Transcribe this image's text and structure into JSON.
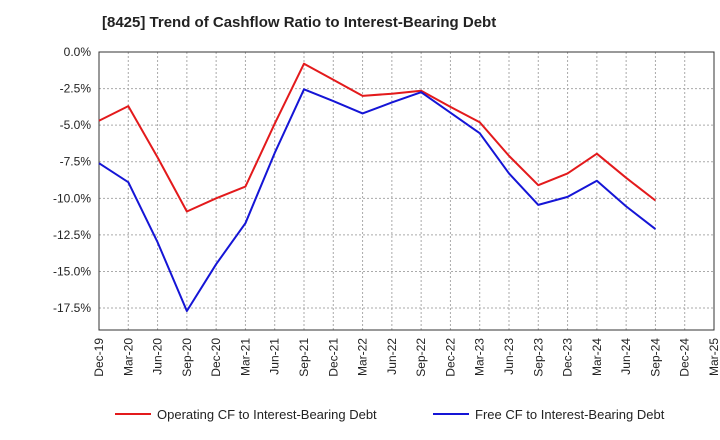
{
  "chart_data": {
    "type": "line",
    "title": "[8425]  Trend of Cashflow Ratio to Interest-Bearing Debt",
    "xlabel": "",
    "ylabel": "",
    "categories": [
      "Dec-19",
      "Mar-20",
      "Jun-20",
      "Sep-20",
      "Dec-20",
      "Mar-21",
      "Jun-21",
      "Sep-21",
      "Dec-21",
      "Mar-22",
      "Jun-22",
      "Sep-22",
      "Dec-22",
      "Mar-23",
      "Jun-23",
      "Sep-23",
      "Dec-23",
      "Mar-24",
      "Jun-24",
      "Sep-24",
      "Dec-24",
      "Mar-25"
    ],
    "y_ticks": [
      "0.0%",
      "-2.5%",
      "-5.0%",
      "-7.5%",
      "-10.0%",
      "-12.5%",
      "-15.0%",
      "-17.5%"
    ],
    "y_tick_values": [
      0,
      -2.5,
      -5,
      -7.5,
      -10,
      -12.5,
      -15,
      -17.5
    ],
    "ylim": [
      -19.0,
      0
    ],
    "grid": true,
    "legend_position": "bottom",
    "series": [
      {
        "name": "Operating CF to Interest-Bearing Debt",
        "color": "#e31a1c",
        "values": [
          -4.7,
          -3.7,
          -7.2,
          -10.9,
          -10.0,
          -9.2,
          -4.9,
          -0.8,
          -1.9,
          -3.0,
          -2.85,
          -2.65,
          -3.75,
          -4.8,
          -7.1,
          -9.1,
          -8.3,
          -6.95,
          -8.6,
          -10.15,
          null,
          null
        ]
      },
      {
        "name": "Free CF to Interest-Bearing Debt",
        "color": "#1515d6",
        "values": [
          -7.6,
          -8.9,
          -13.0,
          -17.7,
          -14.5,
          -11.7,
          -6.9,
          -2.55,
          -3.35,
          -4.2,
          -3.45,
          -2.75,
          -4.15,
          -5.55,
          -8.3,
          -10.45,
          -9.9,
          -8.8,
          -10.55,
          -12.1,
          null,
          null
        ]
      }
    ]
  }
}
